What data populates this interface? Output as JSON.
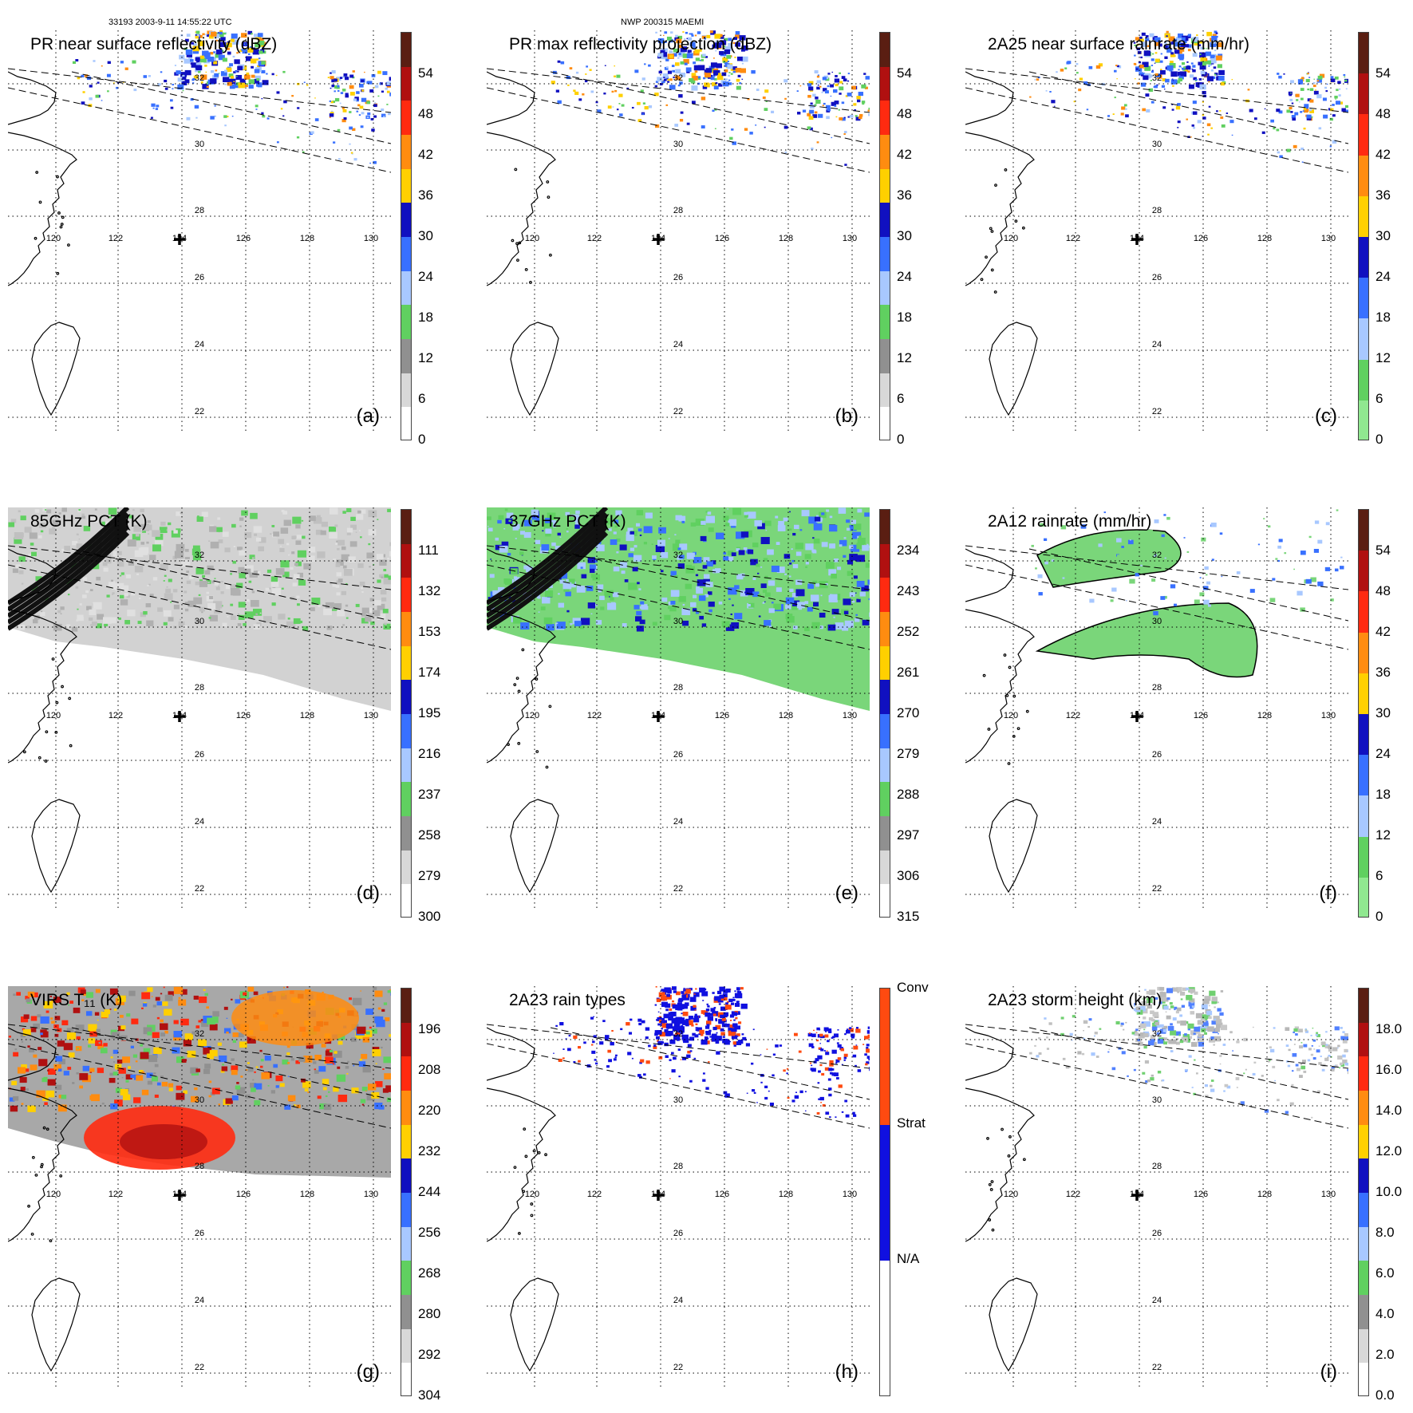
{
  "header": {
    "left": "33193 2003-9-11 14:55:22 UTC",
    "center": "NWP 200315 MAEMI"
  },
  "axes": {
    "lon_labels": [
      "120",
      "122",
      "124",
      "126",
      "128",
      "130"
    ],
    "lat_labels": [
      "32",
      "30",
      "28",
      "26",
      "24",
      "22"
    ]
  },
  "panels": [
    {
      "id": "a",
      "title": "PR near surface reflectivity (dBZ)",
      "label": "(a)",
      "colorbar": {
        "ticks": [
          "54",
          "48",
          "42",
          "36",
          "30",
          "24",
          "18",
          "12",
          "6",
          "0"
        ],
        "colors": [
          "#5a1e12",
          "#b01010",
          "#ff2a10",
          "#ff8c10",
          "#ffd000",
          "#1010c0",
          "#3870ff",
          "#a8c8ff",
          "#60d060",
          "#909090",
          "#d8d8d8",
          "#ffffff"
        ]
      },
      "fill": "pr"
    },
    {
      "id": "b",
      "title": "PR max reflectivity projection (dBZ)",
      "label": "(b)",
      "colorbar": {
        "ticks": [
          "54",
          "48",
          "42",
          "36",
          "30",
          "24",
          "18",
          "12",
          "6",
          "0"
        ],
        "colors": [
          "#5a1e12",
          "#b01010",
          "#ff2a10",
          "#ff8c10",
          "#ffd000",
          "#1010c0",
          "#3870ff",
          "#a8c8ff",
          "#60d060",
          "#909090",
          "#d8d8d8",
          "#ffffff"
        ]
      },
      "fill": "pr"
    },
    {
      "id": "c",
      "title": "2A25 near surface rainrate (mm/hr)",
      "label": "(c)",
      "colorbar": {
        "ticks": [
          "54",
          "48",
          "42",
          "36",
          "30",
          "24",
          "18",
          "12",
          "6",
          "0"
        ],
        "colors": [
          "#5a1e12",
          "#b01010",
          "#ff2a10",
          "#ff8c10",
          "#ffd000",
          "#1010c0",
          "#3870ff",
          "#a8c8ff",
          "#60d060",
          "#90e890"
        ]
      },
      "fill": "pr"
    },
    {
      "id": "d",
      "title": "85GHz PCT (K)",
      "label": "(d)",
      "colorbar": {
        "ticks": [
          "111",
          "132",
          "153",
          "174",
          "195",
          "216",
          "237",
          "258",
          "279",
          "300"
        ],
        "colors": [
          "#5a1e12",
          "#b01010",
          "#ff2a10",
          "#ff8c10",
          "#ffd000",
          "#1010c0",
          "#3870ff",
          "#a8c8ff",
          "#60d060",
          "#909090",
          "#d8d8d8",
          "#ffffff"
        ]
      },
      "fill": "tmi_gray"
    },
    {
      "id": "e",
      "title": "37GHz PCT (K)",
      "label": "(e)",
      "colorbar": {
        "ticks": [
          "234",
          "243",
          "252",
          "261",
          "270",
          "279",
          "288",
          "297",
          "306",
          "315"
        ],
        "colors": [
          "#5a1e12",
          "#b01010",
          "#ff2a10",
          "#ff8c10",
          "#ffd000",
          "#1010c0",
          "#3870ff",
          "#a8c8ff",
          "#60d060",
          "#909090",
          "#d8d8d8",
          "#ffffff"
        ]
      },
      "fill": "tmi_green"
    },
    {
      "id": "f",
      "title": "2A12 rainrate (mm/hr)",
      "label": "(f)",
      "colorbar": {
        "ticks": [
          "54",
          "48",
          "42",
          "36",
          "30",
          "24",
          "18",
          "12",
          "6",
          "0"
        ],
        "colors": [
          "#5a1e12",
          "#b01010",
          "#ff2a10",
          "#ff8c10",
          "#ffd000",
          "#1010c0",
          "#3870ff",
          "#a8c8ff",
          "#60d060",
          "#90e890"
        ]
      },
      "fill": "tmi_rain"
    },
    {
      "id": "g",
      "title": "VIRS T₁₁ (K)",
      "label": "(g)",
      "colorbar": {
        "ticks": [
          "196",
          "208",
          "220",
          "232",
          "244",
          "256",
          "268",
          "280",
          "292",
          "304"
        ],
        "colors": [
          "#5a1e12",
          "#b01010",
          "#ff2a10",
          "#ff8c10",
          "#ffd000",
          "#1010c0",
          "#3870ff",
          "#a8c8ff",
          "#60d060",
          "#909090",
          "#d8d8d8",
          "#ffffff"
        ]
      },
      "fill": "virs"
    },
    {
      "id": "h",
      "title": "2A23 rain types",
      "label": "(h)",
      "colorbar": {
        "ticks": [
          "Conv",
          "Strat",
          "N/A"
        ],
        "colors": [
          "#ff4a10",
          "#1010e0",
          "#ffffff"
        ]
      },
      "fill": "types"
    },
    {
      "id": "i",
      "title": "2A23 storm height (km)",
      "label": "(i)",
      "colorbar": {
        "ticks": [
          "18.0",
          "16.0",
          "14.0",
          "12.0",
          "10.0",
          "8.0",
          "6.0",
          "4.0",
          "2.0",
          "0.0"
        ],
        "colors": [
          "#5a1e12",
          "#b01010",
          "#ff2a10",
          "#ff8c10",
          "#ffd000",
          "#1010c0",
          "#3870ff",
          "#a8c8ff",
          "#60d060",
          "#909090",
          "#d8d8d8",
          "#ffffff"
        ]
      },
      "fill": "pr_light"
    }
  ]
}
